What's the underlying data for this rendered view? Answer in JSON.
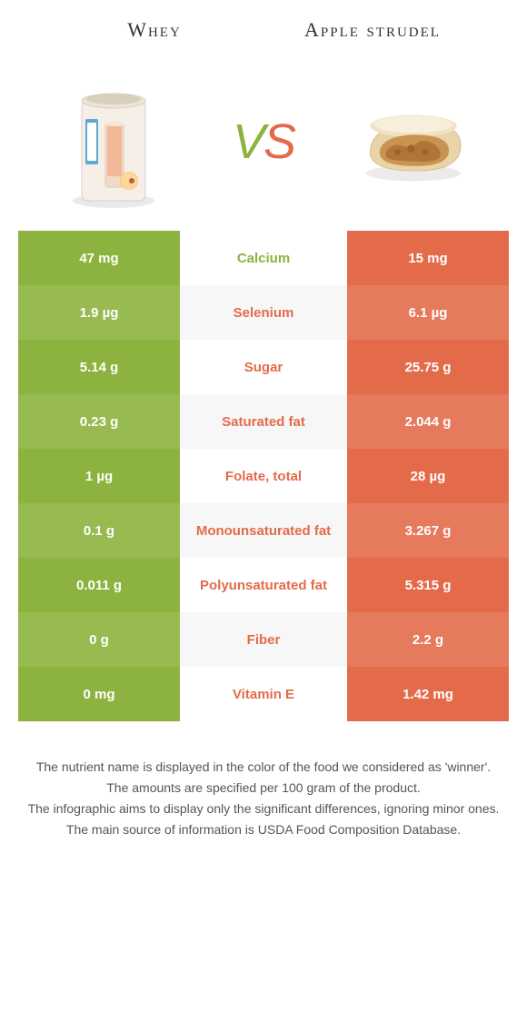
{
  "header": {
    "left_title": "Whey",
    "right_title": "Apple strudel"
  },
  "vs": {
    "v": "V",
    "s": "S"
  },
  "colors": {
    "green": "#8cb23f",
    "orange": "#e36b4a",
    "green_alt": "#97ba51",
    "orange_alt": "#e67a5c",
    "text": "#333333",
    "footer_text": "#555555",
    "bg": "#ffffff"
  },
  "rows": [
    {
      "left": "47 mg",
      "mid": "Calcium",
      "right": "15 mg",
      "winner": "green"
    },
    {
      "left": "1.9 µg",
      "mid": "Selenium",
      "right": "6.1 µg",
      "winner": "orange"
    },
    {
      "left": "5.14 g",
      "mid": "Sugar",
      "right": "25.75 g",
      "winner": "orange"
    },
    {
      "left": "0.23 g",
      "mid": "Saturated fat",
      "right": "2.044 g",
      "winner": "orange"
    },
    {
      "left": "1 µg",
      "mid": "Folate, total",
      "right": "28 µg",
      "winner": "orange"
    },
    {
      "left": "0.1 g",
      "mid": "Monounsaturated fat",
      "right": "3.267 g",
      "winner": "orange"
    },
    {
      "left": "0.011 g",
      "mid": "Polyunsaturated fat",
      "right": "5.315 g",
      "winner": "orange"
    },
    {
      "left": "0 g",
      "mid": "Fiber",
      "right": "2.2 g",
      "winner": "orange"
    },
    {
      "left": "0 mg",
      "mid": "Vitamin E",
      "right": "1.42 mg",
      "winner": "orange"
    }
  ],
  "footer": {
    "line1": "The nutrient name is displayed in the color of the food we considered as 'winner'.",
    "line2": "The amounts are specified per 100 gram of the product.",
    "line3": "The infographic aims to display only the significant differences, ignoring minor ones.",
    "line4": "The main source of information is USDA Food Composition Database."
  }
}
